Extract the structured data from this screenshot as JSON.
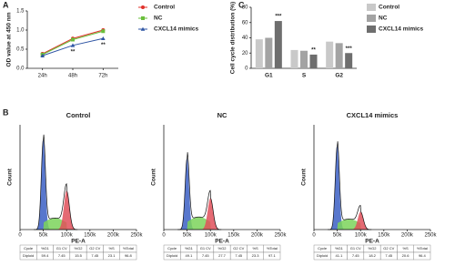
{
  "chart_data": [
    {
      "type": "line",
      "panel_label": "A",
      "ylabel": "OD value at 450 nm",
      "categories": [
        "24h",
        "48h",
        "72h"
      ],
      "series": [
        {
          "name": "Control",
          "color": "#e0302a",
          "values": [
            0.38,
            0.78,
            1.0
          ]
        },
        {
          "name": "NC",
          "color": "#6abf3b",
          "values": [
            0.36,
            0.75,
            0.97
          ]
        },
        {
          "name": "CXCL14 mimics",
          "color": "#2f55a4",
          "values": [
            0.33,
            0.6,
            0.78
          ]
        }
      ],
      "ylim": [
        0,
        1.5
      ],
      "yticks": [
        {
          "value": 0,
          "label": "0.0"
        },
        0.5,
        {
          "value": 1,
          "label": "1.0"
        },
        1.5
      ],
      "annotations": [
        {
          "category": 1,
          "text": "**"
        },
        {
          "category": 2,
          "text": "**"
        }
      ]
    },
    {
      "type": "bar",
      "panel_label": "C",
      "ylabel": "Cell cycle distribution (%)",
      "categories": [
        "G1",
        "S",
        "G2"
      ],
      "series": [
        {
          "name": "Control",
          "color": "#c9c9c9",
          "values": [
            38,
            24,
            35
          ]
        },
        {
          "name": "NC",
          "color": "#a3a3a3",
          "values": [
            40,
            23,
            33
          ]
        },
        {
          "name": "CXCL14 mimics",
          "color": "#6e6e6e",
          "values": [
            62,
            18,
            20
          ]
        }
      ],
      "ylim": [
        0,
        80
      ],
      "yticks": [
        0,
        20,
        40,
        60,
        80
      ],
      "annotations": [
        {
          "category": 0,
          "text": "***"
        },
        {
          "category": 1,
          "text": "**"
        },
        {
          "category": 2,
          "text": "***"
        }
      ]
    },
    {
      "type": "flow",
      "panel_label": "B",
      "title": "Control",
      "xlabel": "PE-A",
      "ylabel": "Count",
      "xlim": [
        0,
        250000
      ],
      "xticks": [
        0,
        {
          "value": 50000,
          "label": "50k"
        },
        {
          "value": 100000,
          "label": "100k"
        },
        {
          "value": 150000,
          "label": "150k"
        },
        {
          "value": 200000,
          "label": "200k"
        },
        {
          "value": 250000,
          "label": "250k"
        }
      ],
      "table": {
        "header": [
          "Cycle",
          "%G1",
          "G1 CV",
          "%G2",
          "G2 CV",
          "%S",
          "%Total"
        ],
        "rows": [
          [
            "Diploid",
            "59.4",
            "7.45",
            "15.5",
            "7.45",
            "23.1",
            "96.8"
          ]
        ]
      }
    },
    {
      "type": "flow",
      "title": "NC",
      "xlabel": "PE-A",
      "ylabel": "Count",
      "xlim": [
        0,
        250000
      ],
      "xticks": [
        0,
        {
          "value": 50000,
          "label": "50k"
        },
        {
          "value": 100000,
          "label": "100k"
        },
        {
          "value": 150000,
          "label": "150k"
        },
        {
          "value": 200000,
          "label": "200k"
        },
        {
          "value": 250000,
          "label": "250k"
        }
      ],
      "table": {
        "header": [
          "Cycle",
          "%G1",
          "G1 CV",
          "%G2",
          "G2 CV",
          "%S",
          "%Total"
        ],
        "rows": [
          [
            "Diploid",
            "49.1",
            "7.45",
            "27.7",
            "7.45",
            "23.3",
            "97.1"
          ]
        ]
      }
    },
    {
      "type": "flow",
      "title": "CXCL14 mimics",
      "xlabel": "PE-A",
      "ylabel": "Count",
      "xlim": [
        0,
        250000
      ],
      "xticks": [
        0,
        {
          "value": 50000,
          "label": "50k"
        },
        {
          "value": 100000,
          "label": "100k"
        },
        {
          "value": 150000,
          "label": "150k"
        },
        {
          "value": 200000,
          "label": "200k"
        },
        {
          "value": 250000,
          "label": "250k"
        }
      ],
      "table": {
        "header": [
          "Cycle",
          "%G1",
          "G1 CV",
          "%G2",
          "G2 CV",
          "%S",
          "%Total"
        ],
        "rows": [
          [
            "Diploid",
            "41.1",
            "7.45",
            "18.2",
            "7.45",
            "20.6",
            "96.4"
          ]
        ]
      }
    }
  ]
}
